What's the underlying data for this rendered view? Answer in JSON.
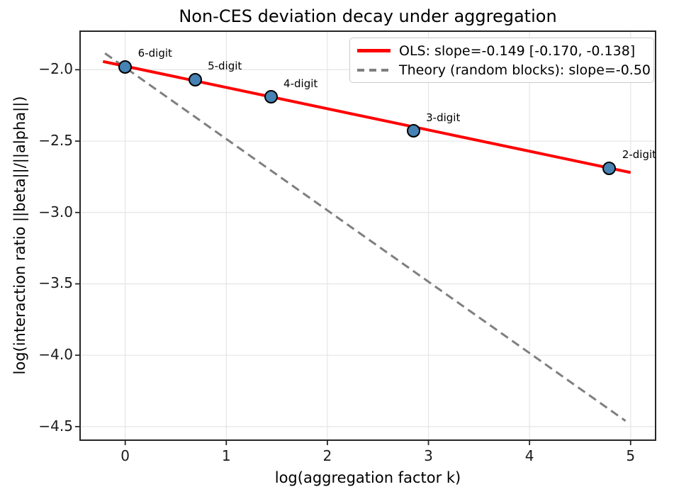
{
  "chart_data": {
    "type": "scatter",
    "title": "Non-CES deviation decay under aggregation",
    "xlabel": "log(aggregation factor k)",
    "ylabel": "log(interaction ratio ||beta||/||alpha||)",
    "xlim": [
      -0.4535,
      5.254
    ],
    "ylim": [
      -4.6,
      -1.725
    ],
    "grid": true,
    "legend_position": "upper right",
    "xticks": {
      "values": [
        0,
        1,
        2,
        3,
        4,
        5
      ],
      "labels": [
        "0",
        "1",
        "2",
        "3",
        "4",
        "5"
      ]
    },
    "yticks": {
      "values": [
        -2.0,
        -2.5,
        -3.0,
        -3.5,
        -4.0,
        -4.5
      ],
      "labels": [
        "−2.0",
        "−2.5",
        "−3.0",
        "−3.5",
        "−4.0",
        "−4.5"
      ]
    },
    "points": [
      {
        "label": "6-digit",
        "x": 0.0,
        "y": -1.98
      },
      {
        "label": "5-digit",
        "x": 0.69,
        "y": -2.07
      },
      {
        "label": "4-digit",
        "x": 1.44,
        "y": -2.19
      },
      {
        "label": "3-digit",
        "x": 2.85,
        "y": -2.43
      },
      {
        "label": "2-digit",
        "x": 4.79,
        "y": -2.69
      }
    ],
    "lines": [
      {
        "name": "ols",
        "label": "OLS: slope=-0.149 [-0.170, -0.138]",
        "slope": -0.149,
        "intercept": -1.975,
        "x_start": -0.22,
        "x_end": 5.0,
        "style": "solid"
      },
      {
        "name": "theory",
        "label": "Theory (random blocks): slope=-0.50",
        "slope": -0.5,
        "intercept": -1.985,
        "x_start": -0.2,
        "x_end": 4.95,
        "style": "dashed"
      }
    ]
  },
  "colors": {
    "ols_line": "#ff0000",
    "theory_line": "#7f7f7f",
    "marker_fill": "#4682b4",
    "marker_edge": "#000000",
    "grid": "#e5e5e5",
    "spine": "#262626",
    "text": "#000000"
  }
}
